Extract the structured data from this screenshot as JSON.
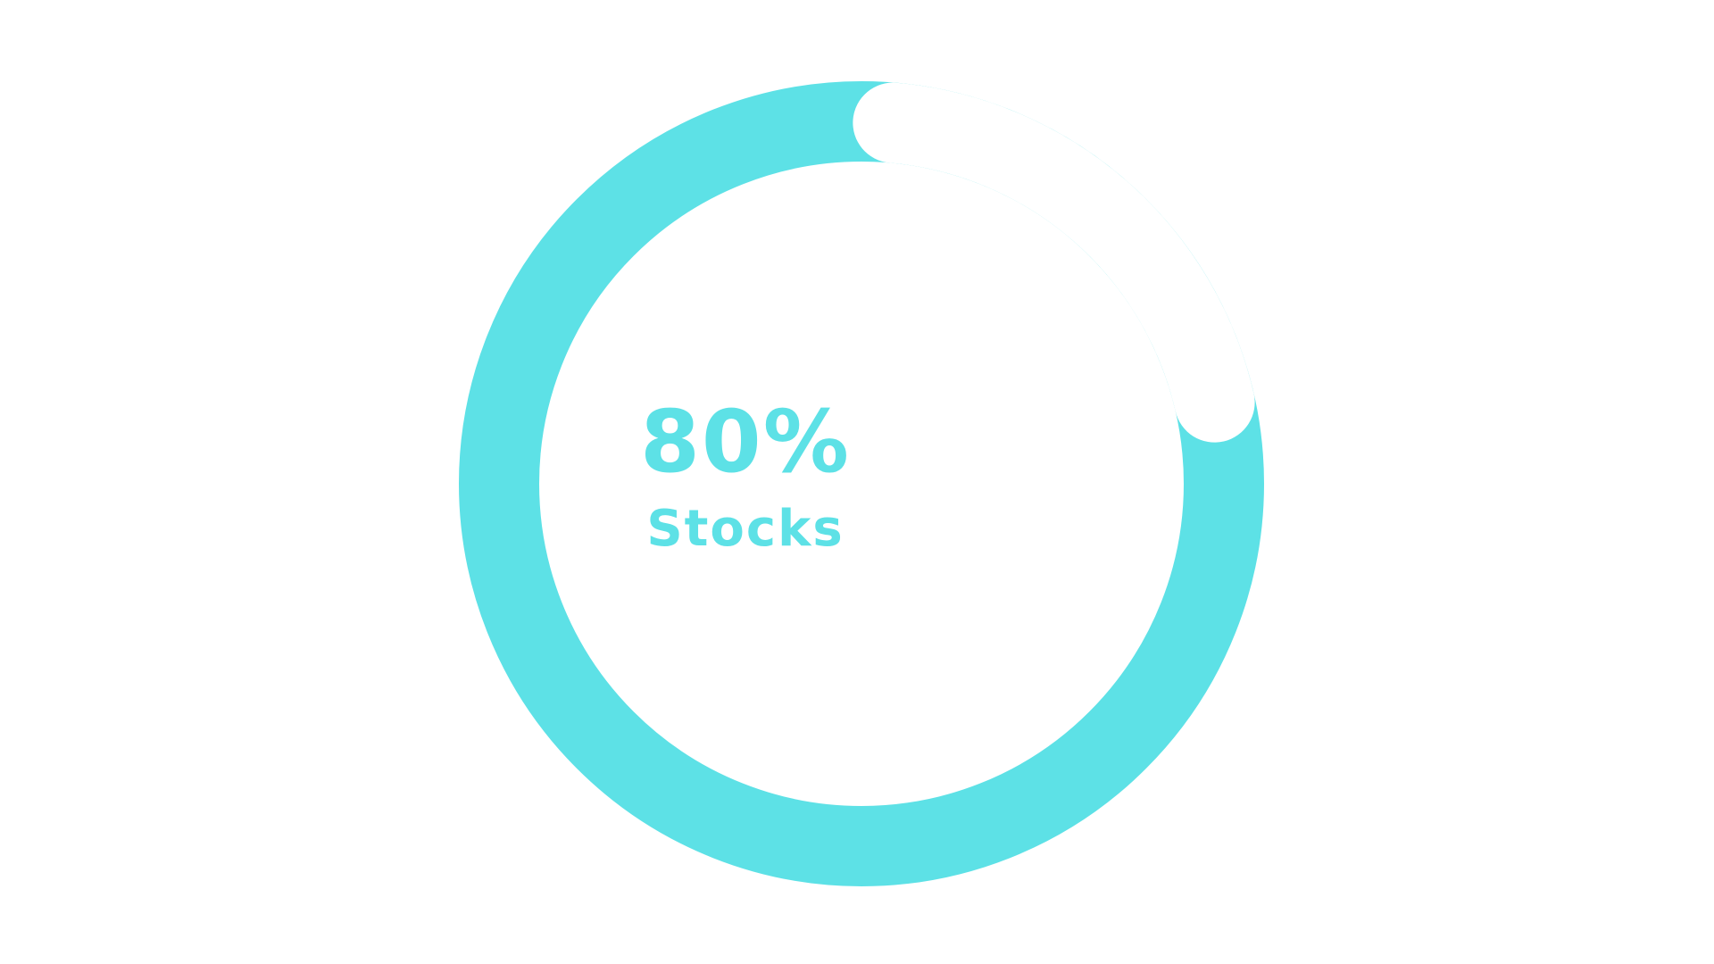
{
  "chart_data": {
    "type": "pie",
    "variant": "donut",
    "slices": [
      {
        "label": "Stocks",
        "value": 80
      },
      {
        "label": "",
        "value": 20
      }
    ],
    "center_value": "80%",
    "center_label": "Stocks",
    "start_angle_deg": 5,
    "direction": "clockwise",
    "colors": {
      "ring": "#5de1e6",
      "remainder": "#ffffff",
      "text": "#5de1e6",
      "background": "#ffffff"
    }
  }
}
